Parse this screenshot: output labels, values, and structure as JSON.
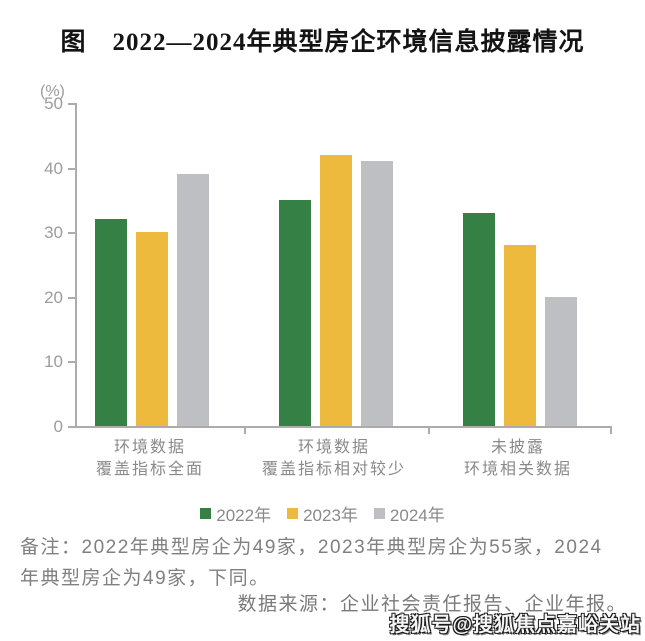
{
  "page": {
    "title": "图　2022—2024年典型房企环境信息披露情况",
    "watermark": "搜狐号@搜狐焦点嘉峪关站"
  },
  "chart_data": {
    "type": "bar",
    "title": "图　2022—2024年典型房企环境信息披露情况",
    "unit_label": "(%)",
    "categories": [
      [
        "环境数据",
        "覆盖指标全面"
      ],
      [
        "环境数据",
        "覆盖指标相对较少"
      ],
      [
        "未披露",
        "环境相关数据"
      ]
    ],
    "series": [
      {
        "name": "2022年",
        "color": "#358044",
        "values": [
          32,
          35,
          33
        ]
      },
      {
        "name": "2023年",
        "color": "#EDBA3D",
        "values": [
          30,
          42,
          28
        ]
      },
      {
        "name": "2024年",
        "color": "#BDBFC2",
        "values": [
          39,
          41,
          20
        ]
      }
    ],
    "ylim": [
      0,
      50
    ],
    "yticks": [
      0,
      10,
      20,
      30,
      40,
      50
    ],
    "grid": false,
    "legend_position": "bottom",
    "axis_color": "#ACACAC"
  },
  "notes": {
    "lines": [
      "备注：2022年典型房企为49家，2023年典型房企为55家，2024",
      "年典型房企为49家，下同。"
    ]
  },
  "source": "数据来源：企业社会责任报告、企业年报。"
}
